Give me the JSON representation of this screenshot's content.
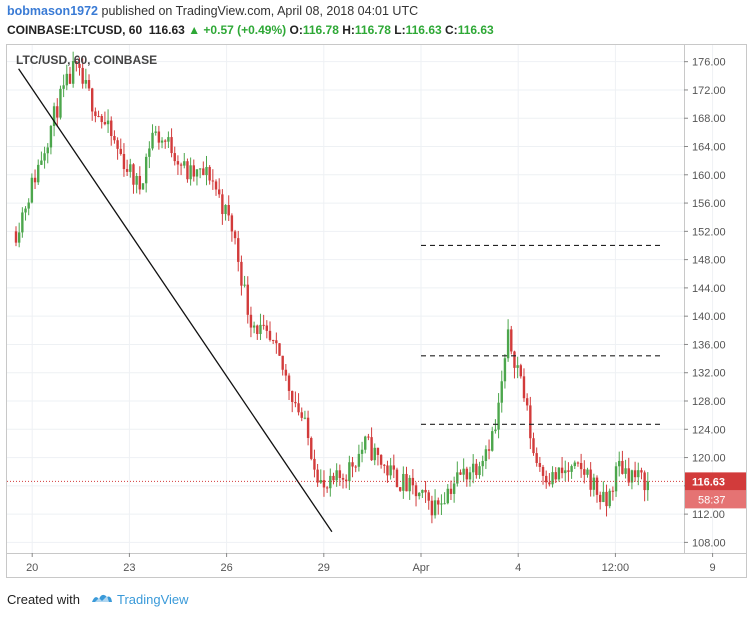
{
  "header": {
    "username": "bobmason1972",
    "published_text": " published on TradingView.com, April 08, 2018 04:01 UTC",
    "symbol": "COINBASE:LTCUSD, 60",
    "last": "116.63",
    "change": "+0.57 (+0.49%)",
    "open_label": "O:",
    "open": "116.78",
    "high_label": "H:",
    "high": "116.78",
    "low_label": "L:",
    "low": "116.63",
    "close_label": "C:",
    "close": "116.63"
  },
  "footer": {
    "created_with": "Created with",
    "brand": "TradingView"
  },
  "colors": {
    "up": "#4ca64c",
    "down": "#d23b3b",
    "accent": "#3a9ad9",
    "price_line": "#d23b3b"
  },
  "chart_data": {
    "type": "candlestick",
    "title": "LTC/USD, 60, COINBASE",
    "ylim": [
      106.5,
      178.5
    ],
    "yticks": [
      "176.00",
      "172.00",
      "168.00",
      "164.00",
      "160.00",
      "156.00",
      "152.00",
      "148.00",
      "144.00",
      "140.00",
      "136.00",
      "132.00",
      "128.00",
      "124.00",
      "120.00",
      "116.00",
      "112.00",
      "108.00"
    ],
    "xticks": [
      "20",
      "23",
      "26",
      "29",
      "Apr",
      "4",
      "12:00",
      "9"
    ],
    "last_price": 116.63,
    "last_price_label": "116.63",
    "countdown_label": "58:37",
    "trend_line": {
      "from": [
        0.08,
        175.0
      ],
      "to": [
        9.75,
        109.5
      ]
    },
    "levels": [
      150.0,
      134.4,
      124.7
    ],
    "level_start_x": 12.5,
    "level_end_x": 20.0,
    "path": [
      [
        0,
        152
      ],
      [
        0.6,
        160
      ],
      [
        1.3,
        170
      ],
      [
        1.8,
        175
      ],
      [
        2.4,
        170
      ],
      [
        3.2,
        163
      ],
      [
        3.8,
        158
      ],
      [
        4.2,
        166
      ],
      [
        4.8,
        164
      ],
      [
        5.3,
        160
      ],
      [
        6.0,
        160
      ],
      [
        6.7,
        152
      ],
      [
        7.2,
        140
      ],
      [
        8.0,
        135
      ],
      [
        8.8,
        126
      ],
      [
        9.5,
        115
      ],
      [
        10.2,
        118
      ],
      [
        10.8,
        122
      ],
      [
        11.5,
        118
      ],
      [
        12.3,
        115
      ],
      [
        12.9,
        113
      ],
      [
        13.6,
        117
      ],
      [
        14.2,
        119
      ],
      [
        14.8,
        124
      ],
      [
        15.2,
        137
      ],
      [
        15.6,
        131
      ],
      [
        16.0,
        120
      ],
      [
        16.5,
        117
      ],
      [
        17.0,
        118
      ],
      [
        17.6,
        118
      ],
      [
        18.2,
        113
      ],
      [
        18.6,
        119
      ],
      [
        19.2,
        117
      ],
      [
        19.5,
        116.6
      ]
    ]
  }
}
